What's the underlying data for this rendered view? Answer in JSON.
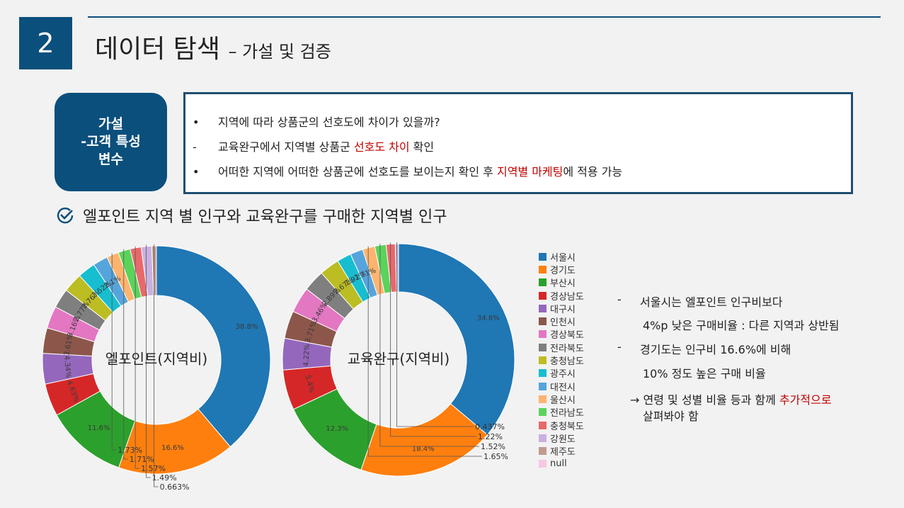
{
  "header": {
    "section_number": "2",
    "title": "데이터 탐색",
    "subtitle": "– 가설 및 검증"
  },
  "hypothesis": {
    "label_lines": [
      "가설",
      "-고객 특성",
      "변수"
    ],
    "lines": [
      {
        "marker": "•",
        "parts": [
          {
            "text": "지역에 따라 상품군의 선호도에 차이가 있을까?",
            "red": false
          }
        ]
      },
      {
        "marker": "-",
        "parts": [
          {
            "text": "교육완구에서 지역별 상품군 ",
            "red": false
          },
          {
            "text": "선호도 차이",
            "red": true
          },
          {
            "text": " 확인",
            "red": false
          }
        ]
      },
      {
        "marker": "•",
        "parts": [
          {
            "text": "어떠한 지역에 어떠한 상품군에 선호도를 보이는지 확인 후 ",
            "red": false
          },
          {
            "text": "지역별 마케팅",
            "red": true
          },
          {
            "text": "에 적용 가능",
            "red": false
          }
        ]
      }
    ]
  },
  "section_heading": "엘포인트 지역 별 인구와 교육완구를 구매한 지역별 인구",
  "chart_data": [
    {
      "type": "pie",
      "title": "엘포인트(지역비)",
      "categories": [
        "서울시",
        "경기도",
        "부산시",
        "경상남도",
        "대구시",
        "인천시",
        "경상북도",
        "전라북도",
        "충청남도",
        "광주시",
        "대전시",
        "울산시",
        "전라남도",
        "충청북도",
        "강원도",
        "제주도",
        "null"
      ],
      "values": [
        38.8,
        16.6,
        11.6,
        4.63,
        4.34,
        3.61,
        3.16,
        2.77,
        2.76,
        2.52,
        2.1,
        1.73,
        1.71,
        1.57,
        1.49,
        0.663,
        0.0
      ],
      "value_labels": [
        "38.8%",
        "16.6%",
        "11.6%",
        "4.63%",
        "4.34%",
        "3.61%",
        "3.16%",
        "2.77%",
        "2.76%",
        "2.52%",
        "2.1%",
        "1.73%",
        "1.71%",
        "1.57%",
        "1.49%",
        "0.663%",
        ""
      ]
    },
    {
      "type": "pie",
      "title": "교육완구(지역비)",
      "categories": [
        "서울시",
        "경기도",
        "부산시",
        "경상남도",
        "대구시",
        "인천시",
        "경상북도",
        "전라북도",
        "충청남도",
        "광주시",
        "대전시",
        "울산시",
        "전라남도",
        "충청북도",
        "강원도",
        "제주도",
        "null"
      ],
      "values": [
        34.8,
        18.4,
        12.3,
        5.4,
        4.22,
        3.71,
        3.46,
        2.89,
        2.67,
        1.92,
        1.71,
        1.65,
        1.52,
        1.22,
        0.437,
        0.0,
        0.0
      ],
      "value_labels": [
        "34.8%",
        "18.4%",
        "12.3%",
        "5.4%",
        "4.22%",
        "3.71%",
        "3.46%",
        "2.89%",
        "2.67%",
        "1.92%",
        "1.71%",
        "1.65%",
        "1.52%",
        "1.22%",
        "0.437%",
        "",
        ""
      ]
    }
  ],
  "legend": {
    "items": [
      "서울시",
      "경기도",
      "부산시",
      "경상남도",
      "대구시",
      "인천시",
      "경상북도",
      "전라북도",
      "충청남도",
      "광주시",
      "대전시",
      "울산시",
      "전라남도",
      "충청북도",
      "강원도",
      "제주도",
      "null"
    ],
    "colors": [
      "#1f77b4",
      "#ff7f0e",
      "#2ca02c",
      "#d62728",
      "#9467bd",
      "#8c564b",
      "#e377c2",
      "#7f7f7f",
      "#bcbd22",
      "#17becf",
      "#56a4dc",
      "#ffb46e",
      "#5bd35b",
      "#e8696b",
      "#c9b1e0",
      "#c49a8e",
      "#f7c6e3"
    ]
  },
  "notes": {
    "n1a": "서울시는 엘포인트 인구비보다",
    "n1b": "4%p 낮은 구매비율 : 다른 지역과 상반됨",
    "n2a": "경기도는 인구비 16.6%에 비해",
    "n2b": "10% 정도 높은 구매 비율",
    "n3a_pre": "→ 연령 및 성별 비율 등과 함께 ",
    "n3a_red": "추가적으로",
    "n3b": "살펴봐야 함",
    "dash": "-"
  }
}
